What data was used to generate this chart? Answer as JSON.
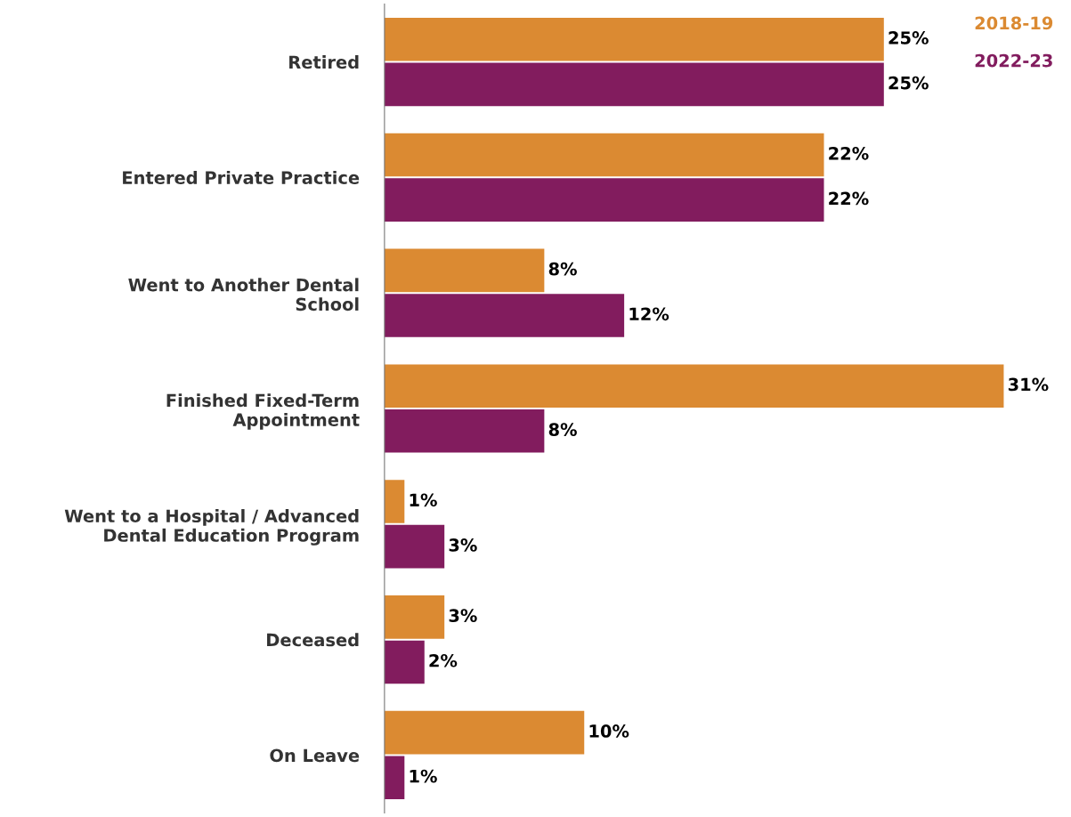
{
  "chart_data": {
    "type": "bar",
    "orientation": "horizontal",
    "legend": "top right",
    "grid": false,
    "categories": [
      "Retired",
      "Entered Private Practice",
      "Went to Another Dental\nSchool",
      "Finished Fixed-Term\nAppointment",
      "Went to a Hospital / Advanced\nDental Education Program",
      "Deceased",
      "On Leave"
    ],
    "series": [
      {
        "name": "2018-19",
        "color": "#db8a32",
        "values": [
          25,
          22,
          8,
          31,
          1,
          3,
          10
        ],
        "value_labels": [
          "25%",
          "22%",
          "8%",
          "31%",
          "1%",
          "3%",
          "10%"
        ]
      },
      {
        "name": "2022-23",
        "color": "#821c5e",
        "values": [
          25,
          22,
          12,
          8,
          3,
          2,
          1
        ],
        "value_labels": [
          "25%",
          "22%",
          "12%",
          "8%",
          "3%",
          "2%",
          "1%"
        ]
      }
    ]
  }
}
